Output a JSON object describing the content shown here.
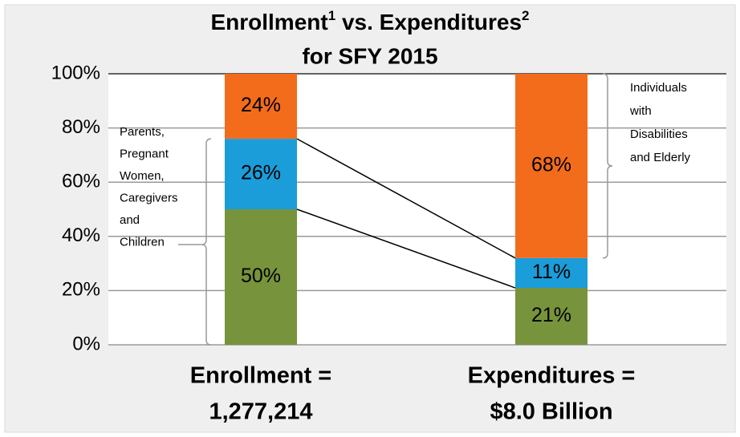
{
  "chart_data": {
    "type": "stacked_bar",
    "title": {
      "part1": "Enrollment",
      "note1": "1",
      "part2": " vs. Expenditures",
      "note2": "2",
      "line2": "for SFY 2015"
    },
    "categories": [
      [
        "Enrollment =",
        "1,277,214"
      ],
      [
        "Expenditures =",
        "$8.0 Billion"
      ]
    ],
    "series": [
      {
        "color": "#77933c",
        "values": [
          50,
          21
        ],
        "value_labels": [
          "50%",
          "21%"
        ]
      },
      {
        "color": "#1a9dd9",
        "values": [
          26,
          11
        ],
        "value_labels": [
          "26%",
          "11%"
        ]
      },
      {
        "color": "#f26c1c",
        "values": [
          24,
          68
        ],
        "value_labels": [
          "24%",
          "68%"
        ]
      }
    ],
    "ylim": [
      0,
      100
    ],
    "yticks": [
      {
        "value": 0,
        "label": "0%"
      },
      {
        "value": 20,
        "label": "20%"
      },
      {
        "value": 40,
        "label": "40%"
      },
      {
        "value": 60,
        "label": "60%"
      },
      {
        "value": 80,
        "label": "80%"
      },
      {
        "value": 100,
        "label": "100%"
      }
    ],
    "grid": true,
    "annotations": [
      {
        "lines": [
          "Parents,",
          "Pregnant",
          "Women,",
          "Caregivers",
          "and",
          "Children"
        ]
      },
      {
        "lines": [
          "Individuals",
          "with",
          "Disabilities",
          "and Elderly"
        ]
      }
    ]
  }
}
